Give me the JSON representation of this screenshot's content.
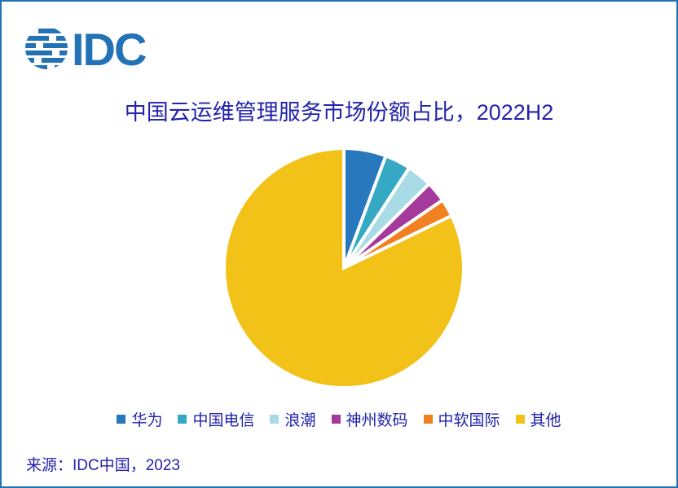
{
  "logo": {
    "text": "IDC",
    "color": "#2272B5"
  },
  "page": {
    "border_color": "#2173B4",
    "background": "#FFFFFF"
  },
  "chart_data": {
    "type": "pie",
    "title": "中国云运维管理服务市场份额占比，2022H2",
    "title_color": "#2323AB",
    "units": "percent",
    "start_angle_deg": 0,
    "direction": "clockwise",
    "legend_position": "bottom",
    "slices": [
      {
        "label": "华为",
        "value": 5.7,
        "color": "#2878BE"
      },
      {
        "label": "中国电信",
        "value": 3.5,
        "color": "#35A9C4"
      },
      {
        "label": "浪潮",
        "value": 3.4,
        "color": "#A9DBE7"
      },
      {
        "label": "神州数码",
        "value": 2.8,
        "color": "#A43A9B"
      },
      {
        "label": "中软国际",
        "value": 2.4,
        "color": "#F08020"
      },
      {
        "label": "其他",
        "value": 82.2,
        "color": "#F2C218"
      }
    ]
  },
  "footer": {
    "source": "来源：IDC中国，2023"
  }
}
